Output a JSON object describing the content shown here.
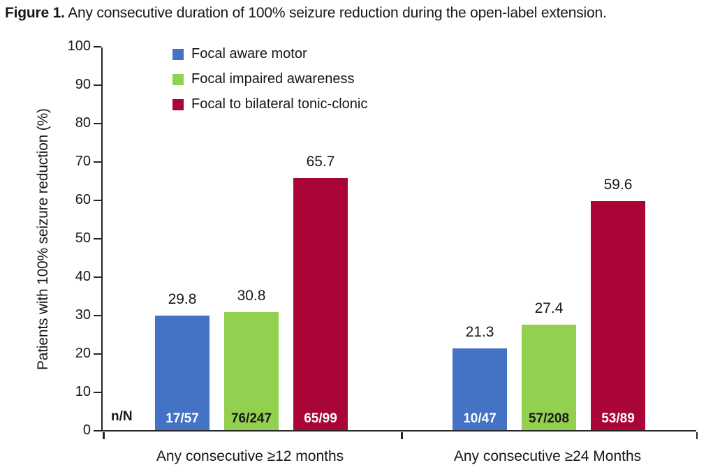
{
  "figure": {
    "label": "Figure 1.",
    "caption": " Any consecutive duration of 100% seizure reduction during the open-label extension."
  },
  "chart_data": {
    "type": "bar",
    "title": "Any consecutive duration of 100% seizure reduction during the open-label extension",
    "xlabel": "",
    "ylabel": "Patients with 100% seizure reduction (%)",
    "ylim": [
      0,
      100
    ],
    "yticks": [
      0,
      10,
      20,
      30,
      40,
      50,
      60,
      70,
      80,
      90,
      100
    ],
    "grid": false,
    "legend_position": "top-left-inside",
    "categories": [
      "Any consecutive ≥12 months",
      "Any consecutive ≥24 Months"
    ],
    "series": [
      {
        "name": "Focal aware motor",
        "color": "#4472C4",
        "values": [
          29.8,
          21.3
        ],
        "n_over_N": [
          "17/57",
          "10/47"
        ],
        "nn_text_color": "#FFFFFF"
      },
      {
        "name": "Focal impaired awareness",
        "color": "#92D050",
        "values": [
          30.8,
          27.4
        ],
        "n_over_N": [
          "76/247",
          "57/208"
        ],
        "nn_text_color": "#1A1A1A"
      },
      {
        "name": "Focal to bilateral tonic-clonic",
        "color": "#AA0537",
        "values": [
          65.7,
          59.6
        ],
        "n_over_N": [
          "65/99",
          "53/89"
        ],
        "nn_text_color": "#FFFFFF"
      }
    ],
    "nn_axis_label": "n/N",
    "colors": {
      "axis": "#262626",
      "text": "#171717"
    }
  }
}
